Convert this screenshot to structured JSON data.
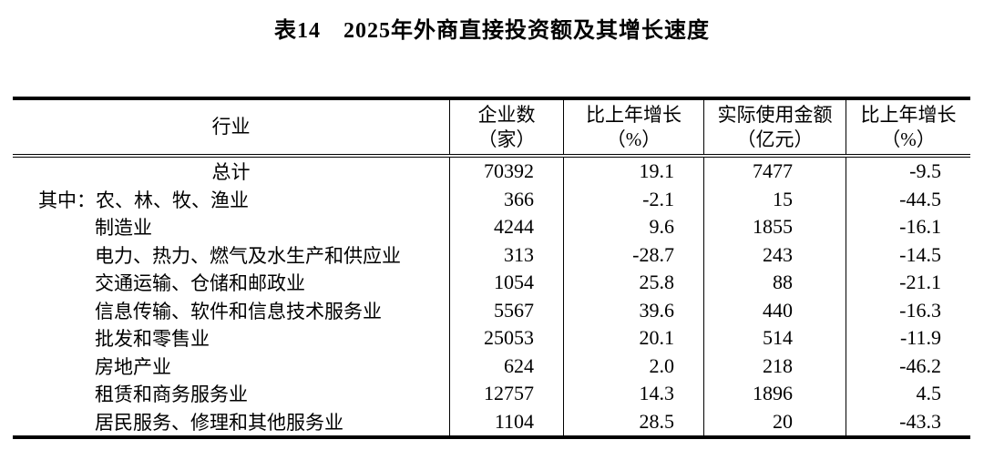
{
  "title": "表14　2025年外商直接投资额及其增长速度",
  "colors": {
    "background": "#ffffff",
    "text": "#000000",
    "rule": "#000000"
  },
  "table": {
    "headers": [
      {
        "line1": "行业",
        "line2": ""
      },
      {
        "line1": "企业数",
        "line2": "（家）"
      },
      {
        "line1": "比上年增长",
        "line2": "（%）"
      },
      {
        "line1": "实际使用金额",
        "line2": "（亿元）"
      },
      {
        "line1": "比上年增长",
        "line2": "（%）"
      }
    ],
    "rows": [
      {
        "prefix": "",
        "industry": "总计",
        "center": true,
        "enterprises": "70392",
        "growth_enterprises": "19.1",
        "amount_used": "7477",
        "growth_amount": "-9.5"
      },
      {
        "prefix": "其中：",
        "industry": "农、林、牧、渔业",
        "center": false,
        "enterprises": "366",
        "growth_enterprises": "-2.1",
        "amount_used": "15",
        "growth_amount": "-44.5"
      },
      {
        "prefix": "",
        "industry": "制造业",
        "center": false,
        "enterprises": "4244",
        "growth_enterprises": "9.6",
        "amount_used": "1855",
        "growth_amount": "-16.1"
      },
      {
        "prefix": "",
        "industry": "电力、热力、燃气及水生产和供应业",
        "center": false,
        "enterprises": "313",
        "growth_enterprises": "-28.7",
        "amount_used": "243",
        "growth_amount": "-14.5"
      },
      {
        "prefix": "",
        "industry": "交通运输、仓储和邮政业",
        "center": false,
        "enterprises": "1054",
        "growth_enterprises": "25.8",
        "amount_used": "88",
        "growth_amount": "-21.1"
      },
      {
        "prefix": "",
        "industry": "信息传输、软件和信息技术服务业",
        "center": false,
        "enterprises": "5567",
        "growth_enterprises": "39.6",
        "amount_used": "440",
        "growth_amount": "-16.3"
      },
      {
        "prefix": "",
        "industry": "批发和零售业",
        "center": false,
        "enterprises": "25053",
        "growth_enterprises": "20.1",
        "amount_used": "514",
        "growth_amount": "-11.9"
      },
      {
        "prefix": "",
        "industry": "房地产业",
        "center": false,
        "enterprises": "624",
        "growth_enterprises": "2.0",
        "amount_used": "218",
        "growth_amount": "-46.2"
      },
      {
        "prefix": "",
        "industry": "租赁和商务服务业",
        "center": false,
        "enterprises": "12757",
        "growth_enterprises": "14.3",
        "amount_used": "1896",
        "growth_amount": "4.5"
      },
      {
        "prefix": "",
        "industry": "居民服务、修理和其他服务业",
        "center": false,
        "enterprises": "1104",
        "growth_enterprises": "28.5",
        "amount_used": "20",
        "growth_amount": "-43.3"
      }
    ]
  }
}
